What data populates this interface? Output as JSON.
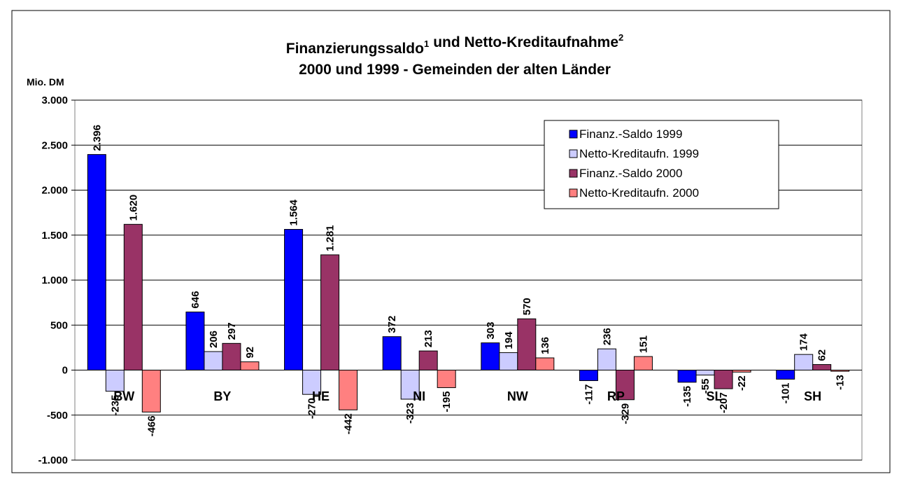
{
  "chart_data": {
    "type": "bar",
    "title": {
      "line1": [
        {
          "text": "Finanzierungssaldo",
          "sup": "1"
        },
        {
          "text": "und Netto-Kreditaufnahme",
          "sup": "2"
        }
      ],
      "line2": "2000 und 1999 - Gemeinden der alten Länder"
    },
    "y_label": "Mio. DM",
    "categories": [
      "BW",
      "BY",
      "HE",
      "NI",
      "NW",
      "RP",
      "SL",
      "SH"
    ],
    "series": [
      {
        "name": "Finanz.-Saldo 1999",
        "color": "#0000ff",
        "values": [
          2396,
          646,
          1564,
          372,
          303,
          -117,
          -135,
          -101
        ],
        "value_labels": [
          "2.396",
          "646",
          "1.564",
          "372",
          "303",
          "-117",
          "-135",
          "-101"
        ]
      },
      {
        "name": "Netto-Kreditaufn. 1999",
        "color": "#ccccff",
        "values": [
          -235,
          206,
          -270,
          -323,
          194,
          236,
          -55,
          174
        ],
        "value_labels": [
          "-235",
          "206",
          "-270",
          "-323",
          "194",
          "236",
          "-55",
          "174"
        ]
      },
      {
        "name": "Finanz.-Saldo 2000",
        "color": "#993366",
        "values": [
          1620,
          297,
          1281,
          213,
          570,
          -329,
          -207,
          62
        ],
        "value_labels": [
          "1.620",
          "297",
          "1.281",
          "213",
          "570",
          "-329",
          "-207",
          "62"
        ]
      },
      {
        "name": "Netto-Kreditaufn. 2000",
        "color": "#ff8080",
        "values": [
          -466,
          92,
          -442,
          -195,
          136,
          151,
          -22,
          -13
        ],
        "value_labels": [
          "-466",
          "92",
          "-442",
          "-195",
          "136",
          "151",
          "-22",
          "-13"
        ]
      }
    ],
    "ylim": [
      -1000,
      3000
    ],
    "yticks": [
      {
        "value": -1000,
        "label": "-1.000"
      },
      -500,
      0,
      500,
      {
        "value": 1000,
        "label": "1.000"
      },
      {
        "value": 1500,
        "label": "1.500"
      },
      {
        "value": 2000,
        "label": "2.000"
      },
      {
        "value": 2500,
        "label": "2.500"
      },
      {
        "value": 3000,
        "label": "3.000"
      }
    ],
    "grid": true,
    "legend": "upper right"
  }
}
